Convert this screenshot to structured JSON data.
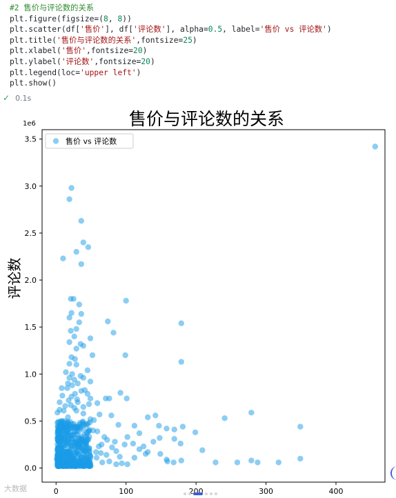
{
  "code": {
    "lines": [
      "#2 售价与评论数的关系",
      "plt.figure(figsize=(8, 8))",
      "plt.scatter(df['售价'], df['评论数'], alpha=0.5, label='售价 vs 评论数')",
      "plt.title('售价与评论数的关系',fontsize=25)",
      "plt.xlabel('售价',fontsize=20)",
      "plt.ylabel('评论数',fontsize=20)",
      "plt.legend(loc='upper left')",
      "plt.show()"
    ],
    "exec_time": "0.1s"
  },
  "watermark": "大数据",
  "colors": {
    "point": "#1f77b4",
    "point_fill": "#1a9be8",
    "axis": "#000000",
    "accent": "#3d5bd9"
  },
  "icons": {
    "exec_status": "check-icon"
  },
  "chart_data": {
    "type": "scatter",
    "title": "售价与评论数的关系",
    "xlabel": "售价",
    "ylabel": "评论数",
    "y_offset_label": "1e6",
    "xlim": [
      -20,
      470
    ],
    "ylim": [
      -150000,
      3600000
    ],
    "xticks": [
      0,
      100,
      200,
      300,
      400
    ],
    "yticks": [
      0,
      500000,
      1000000,
      1500000,
      2000000,
      2500000,
      3000000,
      3500000
    ],
    "ytick_labels": [
      "0.0",
      "0.5",
      "1.0",
      "1.5",
      "2.0",
      "2.5",
      "3.0",
      "3.5"
    ],
    "legend": {
      "position": "upper left",
      "label": "售价 vs 评论数"
    },
    "alpha": 0.5,
    "series": [
      {
        "name": "售价 vs 评论数",
        "points": [
          [
            456,
            3420000
          ],
          [
            22,
            2980000
          ],
          [
            19,
            2860000
          ],
          [
            36,
            2630000
          ],
          [
            39,
            2400000
          ],
          [
            46,
            2350000
          ],
          [
            10,
            2230000
          ],
          [
            36,
            2170000
          ],
          [
            29,
            2300000
          ],
          [
            21,
            1800000
          ],
          [
            25,
            1800000
          ],
          [
            33,
            1740000
          ],
          [
            100,
            1780000
          ],
          [
            22,
            1650000
          ],
          [
            36,
            1640000
          ],
          [
            19,
            1600000
          ],
          [
            74,
            1560000
          ],
          [
            33,
            1550000
          ],
          [
            179,
            1540000
          ],
          [
            29,
            1480000
          ],
          [
            21,
            1460000
          ],
          [
            82,
            1440000
          ],
          [
            49,
            1380000
          ],
          [
            26,
            1400000
          ],
          [
            19,
            1340000
          ],
          [
            35,
            1320000
          ],
          [
            39,
            1300000
          ],
          [
            29,
            1270000
          ],
          [
            52,
            1200000
          ],
          [
            99,
            1200000
          ],
          [
            22,
            1180000
          ],
          [
            27,
            1160000
          ],
          [
            179,
            1130000
          ],
          [
            19,
            1110000
          ],
          [
            29,
            1100000
          ],
          [
            45,
            1040000
          ],
          [
            14,
            1020000
          ],
          [
            23,
            1000000
          ],
          [
            39,
            960000
          ],
          [
            19,
            960000
          ],
          [
            49,
            920000
          ],
          [
            31,
            900000
          ],
          [
            23,
            880000
          ],
          [
            16,
            850000
          ],
          [
            41,
            830000
          ],
          [
            92,
            800000
          ],
          [
            27,
            790000
          ],
          [
            9,
            770000
          ],
          [
            49,
            740000
          ],
          [
            71,
            740000
          ],
          [
            76,
            740000
          ],
          [
            101,
            740000
          ],
          [
            18,
            720000
          ],
          [
            31,
            700000
          ],
          [
            59,
            690000
          ],
          [
            21,
            670000
          ],
          [
            39,
            650000
          ],
          [
            5,
            620000
          ],
          [
            29,
            610000
          ],
          [
            2,
            590000
          ],
          [
            279,
            590000
          ],
          [
            62,
            570000
          ],
          [
            79,
            560000
          ],
          [
            142,
            560000
          ],
          [
            131,
            540000
          ],
          [
            241,
            530000
          ],
          [
            49,
            520000
          ],
          [
            12,
            500000
          ],
          [
            34,
            480000
          ],
          [
            89,
            460000
          ],
          [
            112,
            450000
          ],
          [
            147,
            450000
          ],
          [
            349,
            440000
          ],
          [
            181,
            440000
          ],
          [
            158,
            420000
          ],
          [
            169,
            410000
          ],
          [
            9,
            410000
          ],
          [
            59,
            390000
          ],
          [
            199,
            380000
          ],
          [
            119,
            370000
          ],
          [
            26,
            350000
          ],
          [
            69,
            330000
          ],
          [
            102,
            330000
          ],
          [
            148,
            320000
          ],
          [
            169,
            310000
          ],
          [
            6,
            300000
          ],
          [
            44,
            290000
          ],
          [
            84,
            280000
          ],
          [
            139,
            280000
          ],
          [
            178,
            260000
          ],
          [
            98,
            250000
          ],
          [
            61,
            230000
          ],
          [
            119,
            200000
          ],
          [
            209,
            190000
          ],
          [
            131,
            170000
          ],
          [
            29,
            160000
          ],
          [
            149,
            150000
          ],
          [
            72,
            140000
          ],
          [
            15,
            130000
          ],
          [
            91,
            120000
          ],
          [
            112,
            110000
          ],
          [
            158,
            90000
          ],
          [
            179,
            80000
          ],
          [
            349,
            100000
          ],
          [
            279,
            80000
          ],
          [
            228,
            60000
          ],
          [
            259,
            60000
          ],
          [
            288,
            60000
          ],
          [
            318,
            60000
          ],
          [
            159,
            70000
          ],
          [
            168,
            60000
          ],
          [
            94,
            50000
          ],
          [
            49,
            50000
          ],
          [
            102,
            40000
          ],
          [
            5,
            80000
          ],
          [
            1,
            100000
          ],
          [
            2,
            130000
          ],
          [
            10,
            140000
          ],
          [
            36,
            200000
          ],
          [
            41,
            180000
          ],
          [
            8,
            220000
          ],
          [
            21,
            240000
          ],
          [
            3,
            180000
          ],
          [
            57,
            170000
          ],
          [
            64,
            160000
          ],
          [
            27,
            100000
          ],
          [
            9,
            260000
          ],
          [
            12,
            300000
          ],
          [
            16,
            340000
          ],
          [
            44,
            360000
          ],
          [
            53,
            400000
          ],
          [
            24,
            430000
          ],
          [
            33,
            460000
          ],
          [
            7,
            500000
          ],
          [
            17,
            540000
          ],
          [
            39,
            580000
          ],
          [
            11,
            610000
          ],
          [
            26,
            640000
          ],
          [
            13,
            660000
          ],
          [
            47,
            680000
          ],
          [
            5,
            700000
          ],
          [
            30,
            730000
          ],
          [
            22,
            760000
          ],
          [
            45,
            790000
          ],
          [
            36,
            820000
          ],
          [
            8,
            850000
          ],
          [
            17,
            900000
          ],
          [
            26,
            940000
          ],
          [
            35,
            980000
          ],
          [
            6,
            440000
          ],
          [
            18,
            470000
          ],
          [
            54,
            510000
          ],
          [
            65,
            250000
          ],
          [
            73,
            300000
          ],
          [
            80,
            220000
          ],
          [
            86,
            180000
          ],
          [
            110,
            260000
          ],
          [
            125,
            230000
          ],
          [
            128,
            150000
          ],
          [
            20,
            30000
          ],
          [
            30,
            40000
          ],
          [
            40,
            20000
          ],
          [
            4,
            60000
          ],
          [
            14,
            70000
          ],
          [
            24,
            80000
          ],
          [
            34,
            90000
          ],
          [
            44,
            100000
          ],
          [
            58,
            110000
          ],
          [
            66,
            60000
          ],
          [
            76,
            70000
          ],
          [
            86,
            40000
          ]
        ]
      }
    ]
  }
}
